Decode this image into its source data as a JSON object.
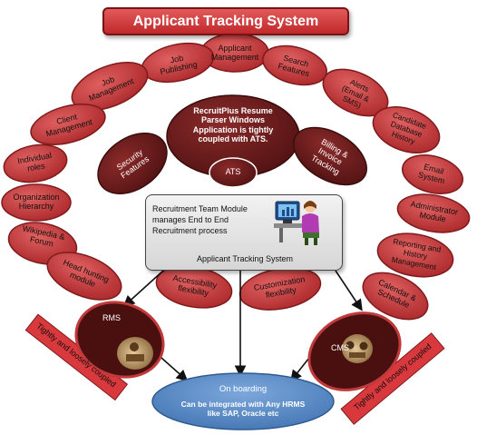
{
  "title": "Applicant Tracking System",
  "features": [
    {
      "id": "applicant-management",
      "label": "Applicant Management"
    },
    {
      "id": "job-publishing",
      "label": "Job Publishing"
    },
    {
      "id": "search-features",
      "label": "Search Features"
    },
    {
      "id": "job-management",
      "label": "Job Management"
    },
    {
      "id": "alerts",
      "label": "Alerts (Email & SMS)"
    },
    {
      "id": "client-management",
      "label": "Client Management"
    },
    {
      "id": "candidate-database-history",
      "label": "Candidate Database History"
    },
    {
      "id": "individual-roles",
      "label": "Individual roles"
    },
    {
      "id": "email-system",
      "label": "Email System"
    },
    {
      "id": "organization-hierarchy",
      "label": "Organization Hierarchy"
    },
    {
      "id": "administrator-module",
      "label": "Administrator Module"
    },
    {
      "id": "wikipedia-forum",
      "label": "Wikipedia & Forum"
    },
    {
      "id": "reporting-history-management",
      "label": "Reporting and History Management"
    },
    {
      "id": "head-hunting-module",
      "label": "Head hunting module"
    },
    {
      "id": "calendar-schedule",
      "label": "Calendar & Schedule"
    },
    {
      "id": "accessibility-flexibility",
      "label": "Accessibility flexibility"
    },
    {
      "id": "customization-flexibility",
      "label": "Customization flexibility"
    }
  ],
  "core": {
    "parser_text": "RecruitPlus Resume Parser Windows Application is tightly coupled with ATS.",
    "ats_label": "ATS",
    "security_label": "Security Features",
    "billing_label": "Billing & Invoice Tracking"
  },
  "rtm": {
    "text": "Recruitment Team Module manages End to End Recruitment process",
    "caption": "Applicant  Tracking System"
  },
  "rms": {
    "label": "RMS",
    "coupling": "Tightly and loosely coupled"
  },
  "cms": {
    "label": "CMS",
    "coupling": "Tightly and loosely coupled"
  },
  "onboarding": {
    "title": "On boarding",
    "subtitle": "Can be integrated with Any HRMS like SAP, Oracle etc"
  },
  "colors": {
    "feature_fill": "#c0393b",
    "feature_dark": "#7e1a1c",
    "core_fill": "#6b1f1f",
    "onboarding_fill": "#4f86c6",
    "banner_fill": "#d83b3e"
  }
}
